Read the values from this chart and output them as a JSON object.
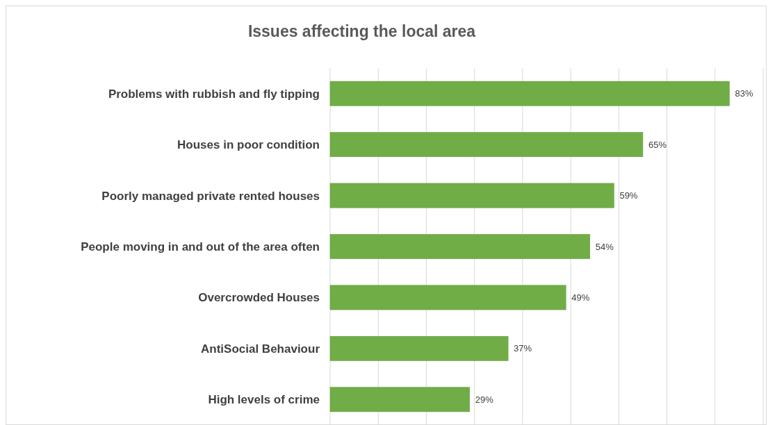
{
  "chart_data": {
    "type": "bar",
    "orientation": "horizontal",
    "title": "Issues affecting the local area",
    "categories": [
      "Problems with rubbish and fly tipping",
      "Houses in poor condition",
      "Poorly managed private rented houses",
      "People moving in and out of the area often",
      "Overcrowded Houses",
      "AntiSocial Behaviour",
      "High levels of crime"
    ],
    "values": [
      83,
      65,
      59,
      54,
      49,
      37,
      29
    ],
    "value_labels": [
      "83%",
      "65%",
      "59%",
      "54%",
      "49%",
      "37%",
      "29%"
    ],
    "color": "#70ad47",
    "xlim": [
      0,
      90
    ],
    "xticks": [
      {
        "value": 0,
        "label": null
      },
      {
        "value": 10,
        "label": null
      },
      {
        "value": 20,
        "label": null
      },
      {
        "value": 30,
        "label": null
      },
      {
        "value": 40,
        "label": null
      },
      {
        "value": 50,
        "label": null
      },
      {
        "value": 60,
        "label": null
      },
      {
        "value": 70,
        "label": null
      },
      {
        "value": 80,
        "label": null
      },
      {
        "value": 90,
        "label": null
      }
    ],
    "grid": "x",
    "tick_labels": "y"
  }
}
